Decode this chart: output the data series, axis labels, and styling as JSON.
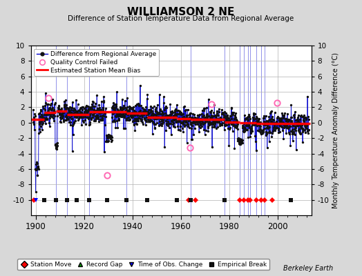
{
  "title": "WILLIAMSON 2 NE",
  "subtitle": "Difference of Station Temperature Data from Regional Average",
  "ylabel_right": "Monthly Temperature Anomaly Difference (°C)",
  "ylim": [
    -12,
    10
  ],
  "xlim": [
    1898,
    2014
  ],
  "xticks": [
    1900,
    1920,
    1940,
    1960,
    1980,
    2000
  ],
  "yticks": [
    -10,
    -8,
    -6,
    -4,
    -2,
    0,
    2,
    4,
    6,
    8,
    10
  ],
  "bg_color": "#d8d8d8",
  "plot_bg_color": "#ffffff",
  "grid_color": "#b0b0b0",
  "line_color": "#0000cc",
  "bias_color": "#ff0000",
  "marker_color": "#111111",
  "qc_color": "#ff69b4",
  "station_move_color": "#ff0000",
  "record_gap_color": "#009900",
  "tobs_color": "#0000ff",
  "empirical_color": "#111111",
  "watermark": "Berkeley Earth",
  "event_y": -10,
  "station_moves": [
    1899.2,
    1963.2,
    1966.1,
    1984.5,
    1986.1,
    1987.8,
    1988.7,
    1991.2,
    1993.2,
    1994.8,
    1997.8
  ],
  "record_gaps": [],
  "tobs_changes": [
    1900.1
  ],
  "empirical_breaks": [
    1903.5,
    1908.5,
    1913.0,
    1917.0,
    1922.0,
    1929.5,
    1937.5,
    1946.0,
    1958.5,
    1964.0,
    1978.0,
    2005.5
  ],
  "vertical_lines_x": [
    1908.5,
    1913.0,
    1922.0,
    1937.5,
    1964.0,
    1978.0,
    1984.5,
    1986.1,
    1987.8,
    1988.7,
    1991.2,
    1993.2,
    1994.8
  ],
  "qc_years": [
    1905.2,
    1929.5,
    1963.8,
    1972.6,
    1999.8
  ],
  "qc_vals": [
    3.2,
    -6.8,
    -3.2,
    2.4,
    2.6
  ],
  "bias_segments": [
    {
      "x": [
        1898.0,
        1903.5
      ],
      "y": [
        0.4,
        0.4
      ]
    },
    {
      "x": [
        1903.5,
        1908.5
      ],
      "y": [
        1.3,
        1.3
      ]
    },
    {
      "x": [
        1908.5,
        1913.0
      ],
      "y": [
        1.5,
        1.5
      ]
    },
    {
      "x": [
        1913.0,
        1922.0
      ],
      "y": [
        1.1,
        1.1
      ]
    },
    {
      "x": [
        1922.0,
        1937.5
      ],
      "y": [
        1.4,
        1.4
      ]
    },
    {
      "x": [
        1937.5,
        1946.0
      ],
      "y": [
        1.2,
        1.2
      ]
    },
    {
      "x": [
        1946.0,
        1958.5
      ],
      "y": [
        0.7,
        0.7
      ]
    },
    {
      "x": [
        1958.5,
        1964.0
      ],
      "y": [
        0.5,
        0.5
      ]
    },
    {
      "x": [
        1964.0,
        1978.0
      ],
      "y": [
        0.4,
        0.4
      ]
    },
    {
      "x": [
        1978.0,
        1984.5
      ],
      "y": [
        0.1,
        0.1
      ]
    },
    {
      "x": [
        1984.5,
        1986.1
      ],
      "y": [
        -0.05,
        -0.05
      ]
    },
    {
      "x": [
        1986.1,
        1987.8
      ],
      "y": [
        -0.05,
        -0.05
      ]
    },
    {
      "x": [
        1987.8,
        1988.7
      ],
      "y": [
        -0.05,
        -0.05
      ]
    },
    {
      "x": [
        1988.7,
        1991.2
      ],
      "y": [
        0.0,
        0.0
      ]
    },
    {
      "x": [
        1991.2,
        1993.2
      ],
      "y": [
        -0.15,
        -0.15
      ]
    },
    {
      "x": [
        1993.2,
        1994.8
      ],
      "y": [
        -0.15,
        -0.15
      ]
    },
    {
      "x": [
        1994.8,
        2013.5
      ],
      "y": [
        -0.15,
        -0.15
      ]
    }
  ],
  "random_seed": 7
}
